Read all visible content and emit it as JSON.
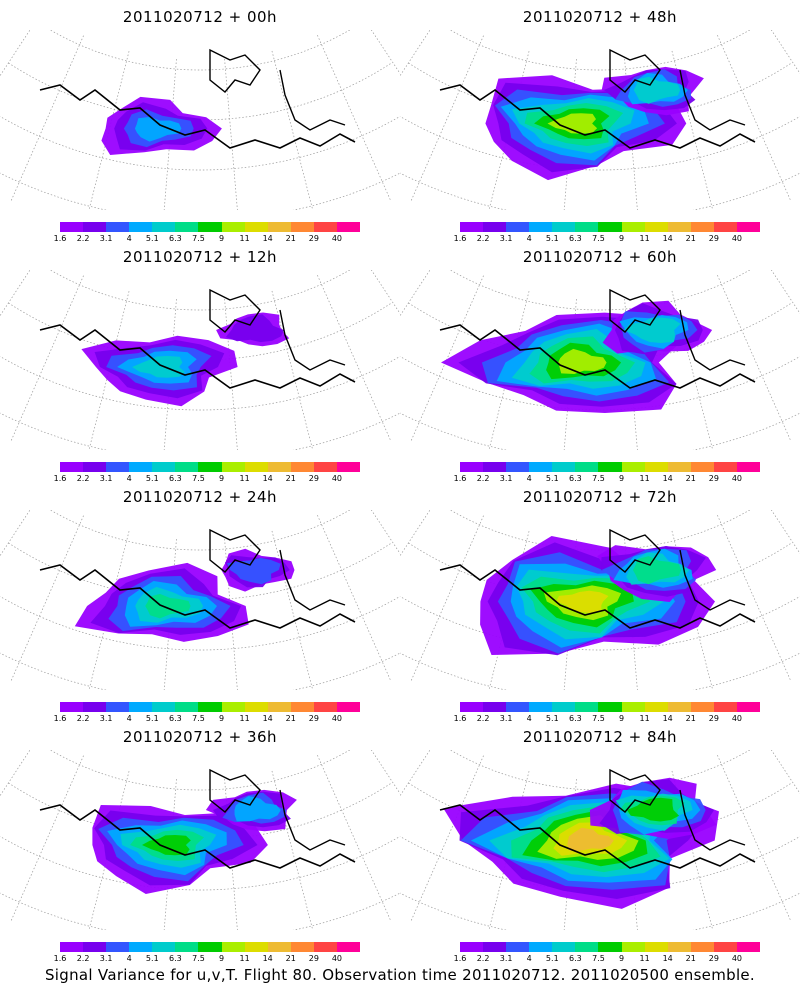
{
  "panels": [
    {
      "title": "2011020712 + 00h",
      "level": 0.15
    },
    {
      "title": "2011020712 + 48h",
      "level": 0.65
    },
    {
      "title": "2011020712 + 12h",
      "level": 0.3
    },
    {
      "title": "2011020712 + 60h",
      "level": 0.75
    },
    {
      "title": "2011020712 + 24h",
      "level": 0.4
    },
    {
      "title": "2011020712 + 72h",
      "level": 0.85
    },
    {
      "title": "2011020712 + 36h",
      "level": 0.5
    },
    {
      "title": "2011020712 + 84h",
      "level": 0.95
    }
  ],
  "colorbar": {
    "ticks": [
      "1.6",
      "2.2",
      "3.1",
      "4",
      "5.1",
      "6.3",
      "7.5",
      "9",
      "11",
      "14",
      "21",
      "29",
      "40"
    ],
    "colors": [
      "#9900ff",
      "#7700ee",
      "#3355ff",
      "#00aaff",
      "#00cccc",
      "#00dd88",
      "#00cc00",
      "#aaee00",
      "#dddd00",
      "#eebb33",
      "#ff8833",
      "#ff4444",
      "#ff0099"
    ]
  },
  "footer": "Signal Variance for u,v,T. Flight 80. Observation time 2011020712. 2011020500 ensemble."
}
